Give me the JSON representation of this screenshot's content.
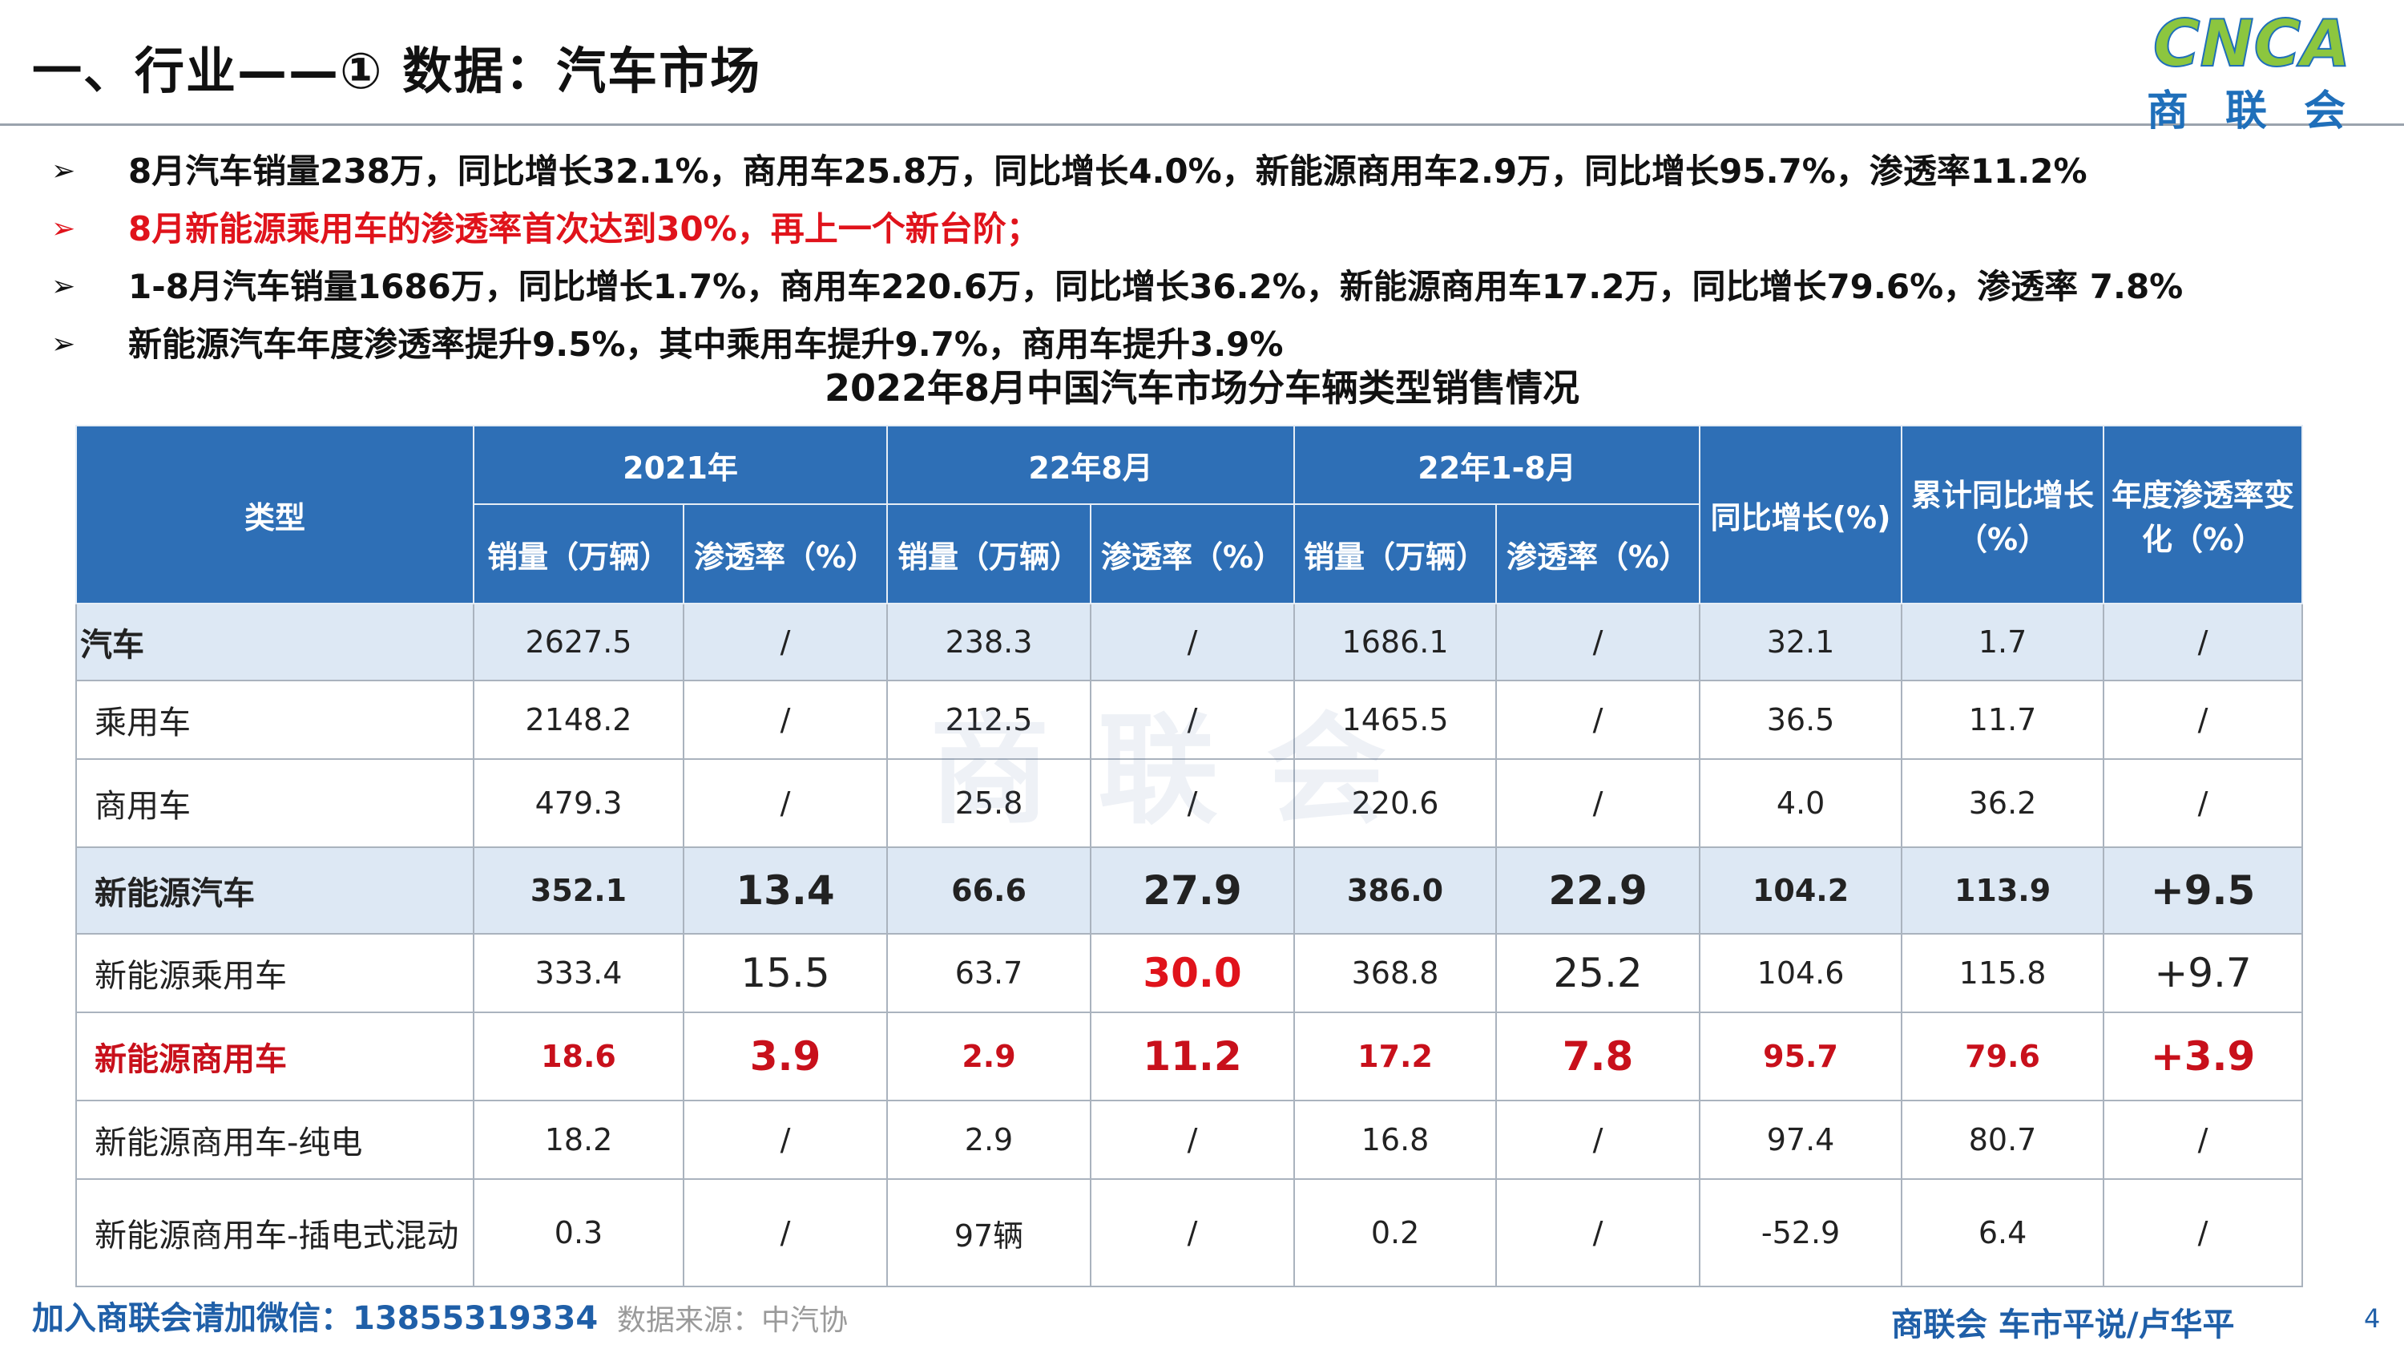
{
  "header": {
    "title": "一、行业——① 数据：汽车市场",
    "logo_text": "CNCA",
    "logo_caption": "商 联 会"
  },
  "bullets": [
    {
      "marker": "➢",
      "text": "8月汽车销量238万，同比增长32.1%，商用车25.8万，同比增长4.0%，新能源商用车2.9万，同比增长95.7%，渗透率11.2%",
      "color": "#111111"
    },
    {
      "marker": "➢",
      "text": "8月新能源乘用车的渗透率首次达到30%，再上一个新台阶；",
      "color": "#e0131b"
    },
    {
      "marker": "➢",
      "text": "1-8月汽车销量1686万，同比增长1.7%，商用车220.6万，同比增长36.2%，新能源商用车17.2万，同比增长79.6%，渗透率 7.8%",
      "color": "#111111"
    },
    {
      "marker": "➢",
      "text": "新能源汽车年度渗透率提升9.5%，其中乘用车提升9.7%，商用车提升3.9%",
      "color": "#111111"
    }
  ],
  "table": {
    "title": "2022年8月中国汽车市场分车辆类型销售情况",
    "watermark": "商联会",
    "header": {
      "type": "类型",
      "group_2021": "2021年",
      "group_aug": "22年8月",
      "group_ytd": "22年1-8月",
      "sales": "销量（万辆）",
      "penetration": "渗透率（%）",
      "yoy": "同比增长(%)",
      "cum_yoy": "累计同比增长（%）",
      "annual_pen_change": "年度渗透率变化（%）"
    },
    "rows": [
      {
        "name": "汽车",
        "v": [
          "2627.5",
          "/",
          "238.3",
          "/",
          "1686.1",
          "/",
          "32.1",
          "1.7",
          "/"
        ]
      },
      {
        "name": "乘用车",
        "v": [
          "2148.2",
          "/",
          "212.5",
          "/",
          "1465.5",
          "/",
          "36.5",
          "11.7",
          "/"
        ]
      },
      {
        "name": "商用车",
        "v": [
          "479.3",
          "/",
          "25.8",
          "/",
          "220.6",
          "/",
          "4.0",
          "36.2",
          "/"
        ]
      },
      {
        "name": "新能源汽车",
        "v": [
          "352.1",
          "13.4",
          "66.6",
          "27.9",
          "386.0",
          "22.9",
          "104.2",
          "113.9",
          "+9.5"
        ]
      },
      {
        "name": "新能源乘用车",
        "v": [
          "333.4",
          "15.5",
          "63.7",
          "30.0",
          "368.8",
          "25.2",
          "104.6",
          "115.8",
          "+9.7"
        ]
      },
      {
        "name": "新能源商用车",
        "v": [
          "18.6",
          "3.9",
          "2.9",
          "11.2",
          "17.2",
          "7.8",
          "95.7",
          "79.6",
          "+3.9"
        ]
      },
      {
        "name": "新能源商用车-纯电",
        "v": [
          "18.2",
          "/",
          "2.9",
          "/",
          "16.8",
          "/",
          "97.4",
          "80.7",
          "/"
        ]
      },
      {
        "name": "新能源商用车-插电式混动",
        "v": [
          "0.3",
          "/",
          "97辆",
          "/",
          "0.2",
          "/",
          "-52.9",
          "6.4",
          "/"
        ]
      }
    ]
  },
  "footer": {
    "wechat": "加入商联会请加微信：13855319334",
    "source": "数据来源：中汽协",
    "author": "商联会  车市平说/卢华平",
    "page": "4"
  },
  "colors": {
    "header_blue": "#2e6fb6",
    "highlight_red": "#e0131b",
    "row_shade": "#dde8f4",
    "logo_green": "#8cc63f",
    "logo_blue": "#1f6fba"
  }
}
